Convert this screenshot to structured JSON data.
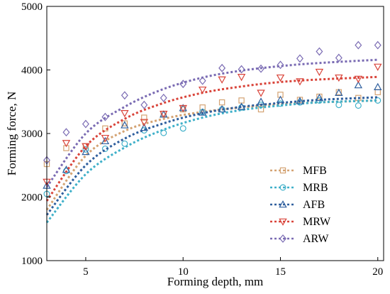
{
  "chart_data": {
    "type": "scatter",
    "title": "",
    "xlabel": "Forming depth, mm",
    "ylabel": "Forming force, N",
    "xlim": [
      3,
      20.3
    ],
    "ylim": [
      1000,
      5000
    ],
    "xticks": [
      5,
      10,
      15,
      20
    ],
    "yticks": [
      1000,
      2000,
      3000,
      4000,
      5000
    ],
    "xtick_labels": [
      "5",
      "10",
      "15",
      "20"
    ],
    "ytick_labels": [
      "1000",
      "2000",
      "3000",
      "4000",
      "5000"
    ],
    "grid": false,
    "legend_position": "lower-right",
    "series": [
      {
        "name": "MFB",
        "color": "#d4a373",
        "marker": "square",
        "x": [
          3,
          4,
          5,
          6,
          7,
          8,
          9,
          10,
          11,
          12,
          13,
          14,
          15,
          16,
          17,
          18,
          19,
          20
        ],
        "y": [
          2520,
          2770,
          2800,
          3080,
          3160,
          3250,
          3310,
          3380,
          3410,
          3490,
          3520,
          3380,
          3610,
          3530,
          3580,
          3650,
          3560,
          3650
        ],
        "fit": [
          [
            3,
            1800
          ],
          [
            5,
            2650
          ],
          [
            7,
            3040
          ],
          [
            9,
            3230
          ],
          [
            11,
            3340
          ],
          [
            13,
            3410
          ],
          [
            15,
            3460
          ],
          [
            17,
            3490
          ],
          [
            20,
            3520
          ]
        ]
      },
      {
        "name": "MRB",
        "color": "#3fb0c9",
        "marker": "circle",
        "x": [
          3,
          4,
          5,
          6,
          7,
          8,
          9,
          10,
          11,
          12,
          13,
          14,
          15,
          16,
          17,
          18,
          19,
          20
        ],
        "y": [
          2050,
          2410,
          2750,
          2760,
          2840,
          3050,
          3010,
          3080,
          3340,
          3380,
          3410,
          3450,
          3470,
          3490,
          3520,
          3450,
          3440,
          3520
        ],
        "fit": [
          [
            3,
            1600
          ],
          [
            5,
            2360
          ],
          [
            7,
            2780
          ],
          [
            9,
            3060
          ],
          [
            11,
            3250
          ],
          [
            13,
            3370
          ],
          [
            15,
            3440
          ],
          [
            17,
            3490
          ],
          [
            20,
            3520
          ]
        ]
      },
      {
        "name": "AFB",
        "color": "#2f5f9e",
        "marker": "triangle-up",
        "x": [
          3,
          4,
          5,
          6,
          7,
          8,
          9,
          10,
          11,
          12,
          13,
          14,
          15,
          16,
          17,
          18,
          19,
          20
        ],
        "y": [
          2180,
          2430,
          2710,
          2880,
          3130,
          3090,
          3300,
          3400,
          3330,
          3380,
          3420,
          3500,
          3530,
          3510,
          3560,
          3640,
          3760,
          3730
        ],
        "fit": [
          [
            3,
            1720
          ],
          [
            5,
            2500
          ],
          [
            7,
            2920
          ],
          [
            9,
            3160
          ],
          [
            11,
            3320
          ],
          [
            13,
            3420
          ],
          [
            15,
            3480
          ],
          [
            17,
            3530
          ],
          [
            20,
            3570
          ]
        ]
      },
      {
        "name": "MRW",
        "color": "#d9443a",
        "marker": "triangle-down",
        "x": [
          3,
          4,
          5,
          6,
          7,
          8,
          9,
          10,
          11,
          12,
          13,
          14,
          15,
          16,
          17,
          18,
          19,
          20
        ],
        "y": [
          2240,
          2850,
          2800,
          2930,
          3320,
          3180,
          3310,
          3400,
          3690,
          3850,
          3890,
          3640,
          3880,
          3820,
          3970,
          3880,
          3860,
          4050
        ],
        "fit": [
          [
            3,
            1940
          ],
          [
            5,
            2800
          ],
          [
            7,
            3230
          ],
          [
            9,
            3480
          ],
          [
            11,
            3640
          ],
          [
            13,
            3740
          ],
          [
            15,
            3810
          ],
          [
            17,
            3850
          ],
          [
            20,
            3890
          ]
        ]
      },
      {
        "name": "ARW",
        "color": "#7a6bb3",
        "marker": "diamond",
        "x": [
          3,
          4,
          5,
          6,
          7,
          8,
          9,
          10,
          11,
          12,
          13,
          14,
          15,
          16,
          17,
          18,
          19,
          20
        ],
        "y": [
          2580,
          3020,
          3150,
          3260,
          3600,
          3450,
          3560,
          3780,
          3830,
          4030,
          4010,
          4020,
          4080,
          4180,
          4290,
          4190,
          4390,
          4390
        ],
        "fit": [
          [
            3,
            2160
          ],
          [
            5,
            3000
          ],
          [
            7,
            3420
          ],
          [
            9,
            3700
          ],
          [
            11,
            3880
          ],
          [
            13,
            3990
          ],
          [
            15,
            4060
          ],
          [
            17,
            4110
          ],
          [
            20,
            4160
          ]
        ]
      }
    ]
  }
}
